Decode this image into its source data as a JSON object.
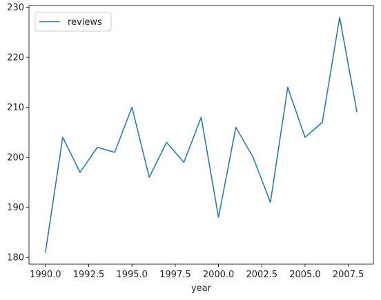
{
  "chart_data": {
    "type": "line",
    "title": "",
    "xlabel": "year",
    "ylabel": "",
    "x": [
      1990,
      1991,
      1992,
      1993,
      1994,
      1995,
      1996,
      1997,
      1998,
      1999,
      2000,
      2001,
      2002,
      2003,
      2004,
      2005,
      2006,
      2007,
      2008
    ],
    "series": [
      {
        "name": "reviews",
        "color": "#2d7aa6",
        "values": [
          181,
          204,
          197,
          202,
          201,
          210,
          196,
          203,
          199,
          208,
          188,
          206,
          200,
          191,
          214,
          204,
          207,
          228,
          209
        ]
      }
    ],
    "xlim": [
      1989.05,
      2008.95
    ],
    "ylim": [
      178.65,
      230.35
    ],
    "xticks": [
      1990.0,
      1992.5,
      1995.0,
      1997.5,
      2000.0,
      2002.5,
      2005.0,
      2007.5
    ],
    "xtick_labels": [
      "1990.0",
      "1992.5",
      "1995.0",
      "1997.5",
      "2000.0",
      "2002.5",
      "2005.0",
      "2007.5"
    ],
    "yticks": [
      180,
      190,
      200,
      210,
      220,
      230
    ],
    "ytick_labels": [
      "180",
      "190",
      "200",
      "210",
      "220",
      "230"
    ],
    "grid": false,
    "legend_position": "upper-left"
  }
}
